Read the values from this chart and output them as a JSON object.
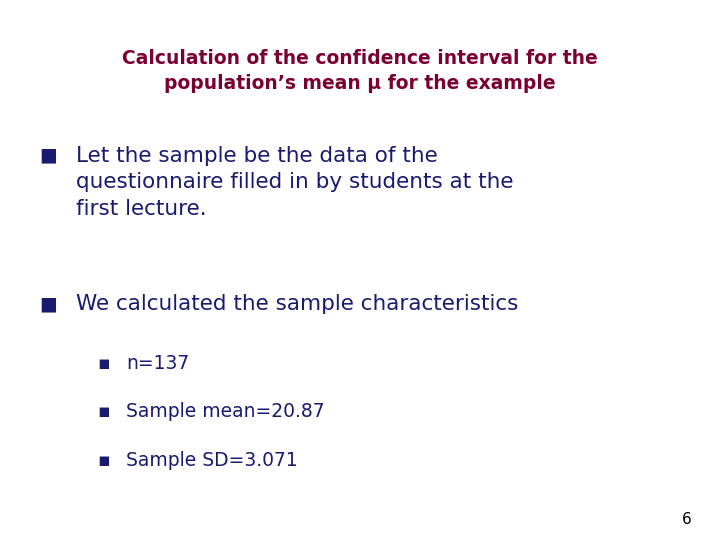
{
  "background_color": "#ffffff",
  "title_line1": "Calculation of the confidence interval for the",
  "title_line2": "population’s mean μ for the example",
  "title_color": "#7B0032",
  "title_fontsize": 13.5,
  "bullet_color": "#1a1a6e",
  "bullet_fontsize": 15.5,
  "sub_bullet_fontsize": 13.5,
  "bullet1_line1": "Let the sample be the data of the",
  "bullet1_line2": "questionnaire filled in by students at the",
  "bullet1_line3": "first lecture.",
  "bullet2": "We calculated the sample characteristics",
  "sub_bullets": [
    "n=137",
    "Sample mean=20.87",
    "Sample SD=3.071"
  ],
  "page_number": "6",
  "page_number_color": "#000000",
  "page_number_fontsize": 11
}
